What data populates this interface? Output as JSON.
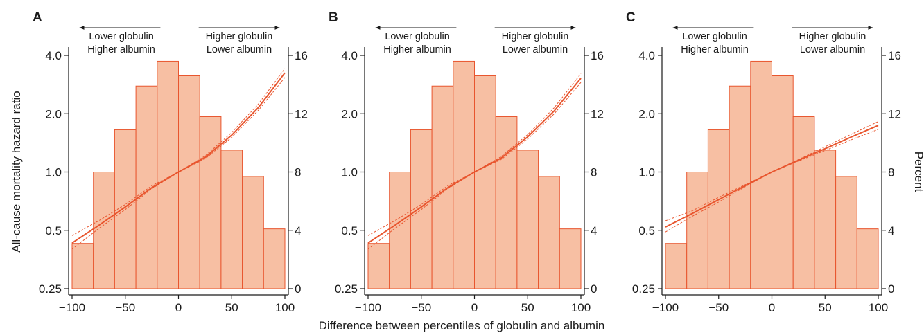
{
  "figure": {
    "xlabel": "Difference between percentiles of globulin and albumin",
    "ylabel_left": "All-cause mortality hazard ratio",
    "ylabel_right": "Percent"
  },
  "colors": {
    "bar_fill": "#f7bfa3",
    "bar_edge": "#e8552e",
    "curve": "#e8552e",
    "reference_line": "#1a1a1a"
  },
  "annotations": {
    "left_arrow": [
      "Lower globulin",
      "Higher albumin"
    ],
    "right_arrow": [
      "Higher globulin",
      "Lower albumin"
    ]
  },
  "chart_data": [
    {
      "panel": "A",
      "type": "bar",
      "x_ticks": [
        -100,
        -50,
        0,
        50,
        100
      ],
      "xlim": [
        -100,
        100
      ],
      "y_left": {
        "scale": "log",
        "ticks": [
          0.25,
          0.5,
          1.0,
          2.0,
          4.0
        ],
        "tick_labels": [
          "0.25",
          "0.5",
          "1.0",
          "2.0",
          "4.0"
        ],
        "lim": [
          0.25,
          4.0
        ]
      },
      "y_right": {
        "ticks": [
          0,
          4,
          8,
          12,
          16
        ],
        "lim": [
          0,
          16
        ]
      },
      "reference_hr": 1.0,
      "histogram": {
        "bin_edges": [
          -100,
          -80,
          -60,
          -40,
          -20,
          0,
          20,
          40,
          60,
          80,
          100
        ],
        "percent": [
          3.1,
          8.0,
          10.9,
          13.9,
          15.6,
          14.6,
          11.8,
          9.5,
          7.7,
          4.1
        ]
      },
      "hazard_ratio_curve": {
        "x": [
          -100,
          -75,
          -50,
          -25,
          0,
          25,
          50,
          75,
          100
        ],
        "hr": [
          0.43,
          0.53,
          0.66,
          0.83,
          1.0,
          1.19,
          1.55,
          2.15,
          3.25
        ],
        "ci_lower": [
          0.4,
          0.51,
          0.64,
          0.82,
          1.0,
          1.17,
          1.51,
          2.08,
          3.08
        ],
        "ci_upper": [
          0.47,
          0.56,
          0.68,
          0.85,
          1.0,
          1.21,
          1.6,
          2.24,
          3.42
        ]
      }
    },
    {
      "panel": "B",
      "type": "bar",
      "x_ticks": [
        -100,
        -50,
        0,
        50,
        100
      ],
      "xlim": [
        -100,
        100
      ],
      "y_left": {
        "scale": "log",
        "ticks": [
          0.25,
          0.5,
          1.0,
          2.0,
          4.0
        ],
        "tick_labels": [
          "0.25",
          "0.5",
          "1.0",
          "2.0",
          "4.0"
        ],
        "lim": [
          0.25,
          4.0
        ]
      },
      "y_right": {
        "ticks": [
          0,
          4,
          8,
          12,
          16
        ],
        "lim": [
          0,
          16
        ]
      },
      "reference_hr": 1.0,
      "histogram": {
        "bin_edges": [
          -100,
          -80,
          -60,
          -40,
          -20,
          0,
          20,
          40,
          60,
          80,
          100
        ],
        "percent": [
          3.1,
          8.0,
          10.9,
          13.9,
          15.6,
          14.6,
          11.8,
          9.5,
          7.7,
          4.1
        ]
      },
      "hazard_ratio_curve": {
        "x": [
          -100,
          -75,
          -50,
          -25,
          0,
          25,
          50,
          75,
          100
        ],
        "hr": [
          0.43,
          0.53,
          0.66,
          0.83,
          1.0,
          1.18,
          1.52,
          2.07,
          3.05
        ],
        "ci_lower": [
          0.4,
          0.51,
          0.64,
          0.82,
          1.0,
          1.16,
          1.48,
          2.0,
          2.9
        ],
        "ci_upper": [
          0.47,
          0.56,
          0.68,
          0.85,
          1.0,
          1.2,
          1.56,
          2.15,
          3.22
        ]
      }
    },
    {
      "panel": "C",
      "type": "bar",
      "x_ticks": [
        -100,
        -50,
        0,
        50,
        100
      ],
      "xlim": [
        -100,
        100
      ],
      "y_left": {
        "scale": "log",
        "ticks": [
          0.25,
          0.5,
          1.0,
          2.0,
          4.0
        ],
        "tick_labels": [
          "0.25",
          "0.5",
          "1.0",
          "2.0",
          "4.0"
        ],
        "lim": [
          0.25,
          4.0
        ]
      },
      "y_right": {
        "ticks": [
          0,
          4,
          8,
          12,
          16
        ],
        "lim": [
          0,
          16
        ]
      },
      "reference_hr": 1.0,
      "histogram": {
        "bin_edges": [
          -100,
          -80,
          -60,
          -40,
          -20,
          0,
          20,
          40,
          60,
          80,
          100
        ],
        "percent": [
          3.1,
          8.0,
          10.9,
          13.9,
          15.6,
          14.6,
          11.8,
          9.5,
          7.7,
          4.1
        ]
      },
      "hazard_ratio_curve": {
        "x": [
          -100,
          -75,
          -50,
          -25,
          0,
          25,
          50,
          75,
          100
        ],
        "hr": [
          0.52,
          0.61,
          0.72,
          0.85,
          1.0,
          1.15,
          1.32,
          1.52,
          1.74
        ],
        "ci_lower": [
          0.49,
          0.59,
          0.7,
          0.84,
          1.0,
          1.14,
          1.29,
          1.47,
          1.66
        ],
        "ci_upper": [
          0.56,
          0.63,
          0.74,
          0.86,
          1.0,
          1.16,
          1.35,
          1.57,
          1.82
        ]
      }
    }
  ]
}
